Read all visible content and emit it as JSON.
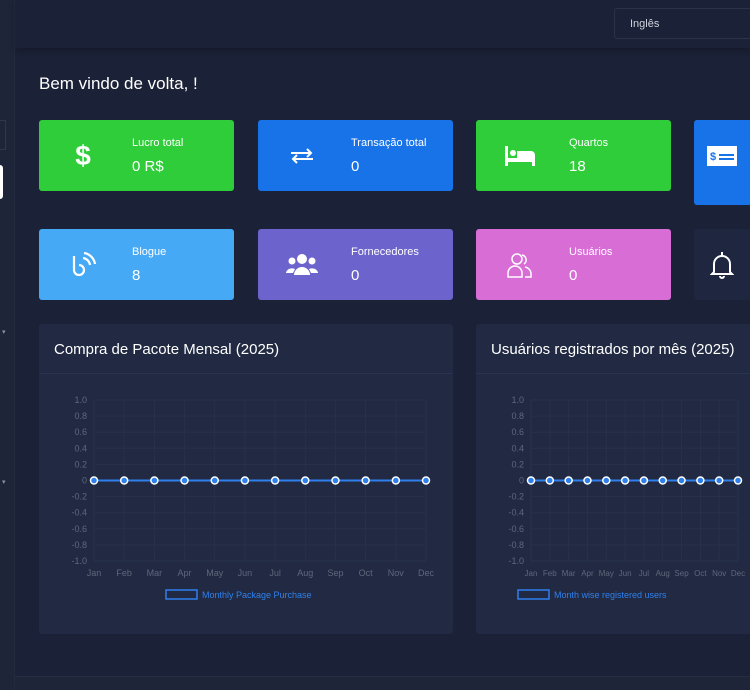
{
  "header": {
    "language": "Inglês"
  },
  "welcome": "Bem vindo de volta, !",
  "cards": [
    {
      "label": "Lucro total",
      "value": "0 R$",
      "color": "#30cd3a",
      "icon": "dollar-icon"
    },
    {
      "label": "Transação total",
      "value": "0",
      "color": "#1873e8",
      "icon": "transfer-arrows-icon"
    },
    {
      "label": "Quartos",
      "value": "18",
      "color": "#30cd3a",
      "icon": "bed-icon"
    },
    {
      "label": "",
      "value": "",
      "color": "#1873e8",
      "icon": "money-check-icon"
    },
    {
      "label": "Blogue",
      "value": "8",
      "color": "#46a9f5",
      "icon": "blog-icon"
    },
    {
      "label": "Fornecedores",
      "value": "0",
      "color": "#6c63cc",
      "icon": "users-group-icon"
    },
    {
      "label": "Usuários",
      "value": "0",
      "color": "#d96dd6",
      "icon": "user-friends-icon"
    },
    {
      "label": "",
      "value": "",
      "color": "#1f2740",
      "icon": "bell-icon"
    }
  ],
  "chart_data": [
    {
      "type": "line",
      "title": "Compra de Pacote Mensal (2025)",
      "categories": [
        "Jan",
        "Feb",
        "Mar",
        "Apr",
        "May",
        "Jun",
        "Jul",
        "Aug",
        "Sep",
        "Oct",
        "Nov",
        "Dec"
      ],
      "series": [
        {
          "name": "Monthly Package Purchase",
          "values": [
            0,
            0,
            0,
            0,
            0,
            0,
            0,
            0,
            0,
            0,
            0,
            0
          ]
        }
      ],
      "ylim": [
        -1,
        1
      ],
      "yticks": [
        "1.0",
        "0.8",
        "0.6",
        "0.4",
        "0.2",
        "0",
        "-0.2",
        "-0.4",
        "-0.6",
        "-0.8",
        "-1.0"
      ],
      "grid": true,
      "legend": "bottom",
      "color": "#2f80ed"
    },
    {
      "type": "line",
      "title": "Usuários registrados por mês (2025)",
      "categories": [
        "Jan",
        "Feb",
        "Mar",
        "Apr",
        "May",
        "Jun",
        "Jul",
        "Aug",
        "Sep",
        "Oct",
        "Nov",
        "Dec"
      ],
      "series": [
        {
          "name": "Month wise registered users",
          "values": [
            0,
            0,
            0,
            0,
            0,
            0,
            0,
            0,
            0,
            0,
            0,
            0
          ]
        }
      ],
      "ylim": [
        -1,
        1
      ],
      "yticks": [
        "1.0",
        "0.8",
        "0.6",
        "0.4",
        "0.2",
        "0",
        "-0.2",
        "-0.4",
        "-0.6",
        "-0.8",
        "-1.0"
      ],
      "grid": true,
      "legend": "bottom",
      "color": "#2f80ed"
    }
  ]
}
